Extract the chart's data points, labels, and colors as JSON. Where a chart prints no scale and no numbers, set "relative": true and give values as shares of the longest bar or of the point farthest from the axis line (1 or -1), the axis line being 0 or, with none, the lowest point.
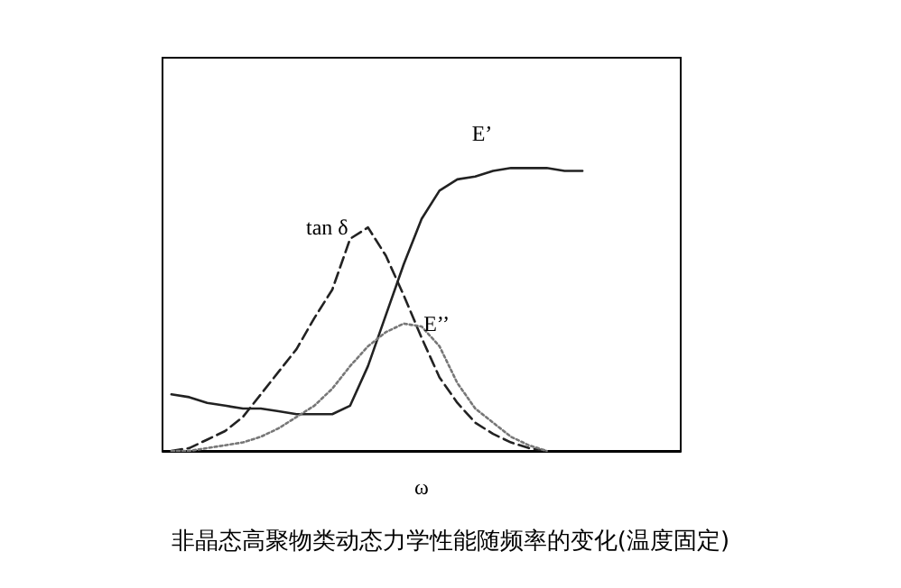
{
  "chart_data": {
    "type": "line",
    "relative": true,
    "title": "非晶态高聚物类动态力学性能随频率的变化(温度固定)",
    "xlabel": "ω",
    "categories": [
      null,
      null,
      null,
      null,
      null,
      null,
      null,
      null,
      null,
      null,
      null,
      null,
      null,
      null,
      null,
      null,
      null,
      null,
      null,
      null,
      null,
      null,
      null,
      null,
      null,
      null,
      null,
      null,
      null
    ],
    "series": [
      {
        "name": "E’",
        "color": "#222222",
        "line_style": "solid",
        "values": [
          0.2,
          0.19,
          0.17,
          0.16,
          0.15,
          0.15,
          0.14,
          0.13,
          0.13,
          0.13,
          0.16,
          0.3,
          0.48,
          0.66,
          0.82,
          0.92,
          0.96,
          0.97,
          0.99,
          1,
          1,
          1,
          0.99,
          0.99,
          null,
          null,
          null,
          null,
          null
        ]
      },
      {
        "name": "tan δ",
        "color": "#222222",
        "line_style": "dashed",
        "values": [
          0,
          0.01,
          0.04,
          0.07,
          0.12,
          0.2,
          0.28,
          0.36,
          0.47,
          0.57,
          0.75,
          0.79,
          0.69,
          0.55,
          0.4,
          0.26,
          0.17,
          0.1,
          0.06,
          0.03,
          0.01,
          0,
          null,
          null,
          null,
          null,
          null,
          null,
          null
        ]
      },
      {
        "name": "E’’",
        "color": "#777777",
        "line_style": "dotted",
        "values": [
          0,
          0,
          0.01,
          0.02,
          0.03,
          0.05,
          0.08,
          0.12,
          0.16,
          0.22,
          0.3,
          0.37,
          0.42,
          0.45,
          0.44,
          0.37,
          0.24,
          0.15,
          0.1,
          0.05,
          0.02,
          0,
          null,
          null,
          null,
          null,
          null,
          null,
          null
        ]
      }
    ],
    "marker": "none",
    "grid": false,
    "legend": false
  }
}
